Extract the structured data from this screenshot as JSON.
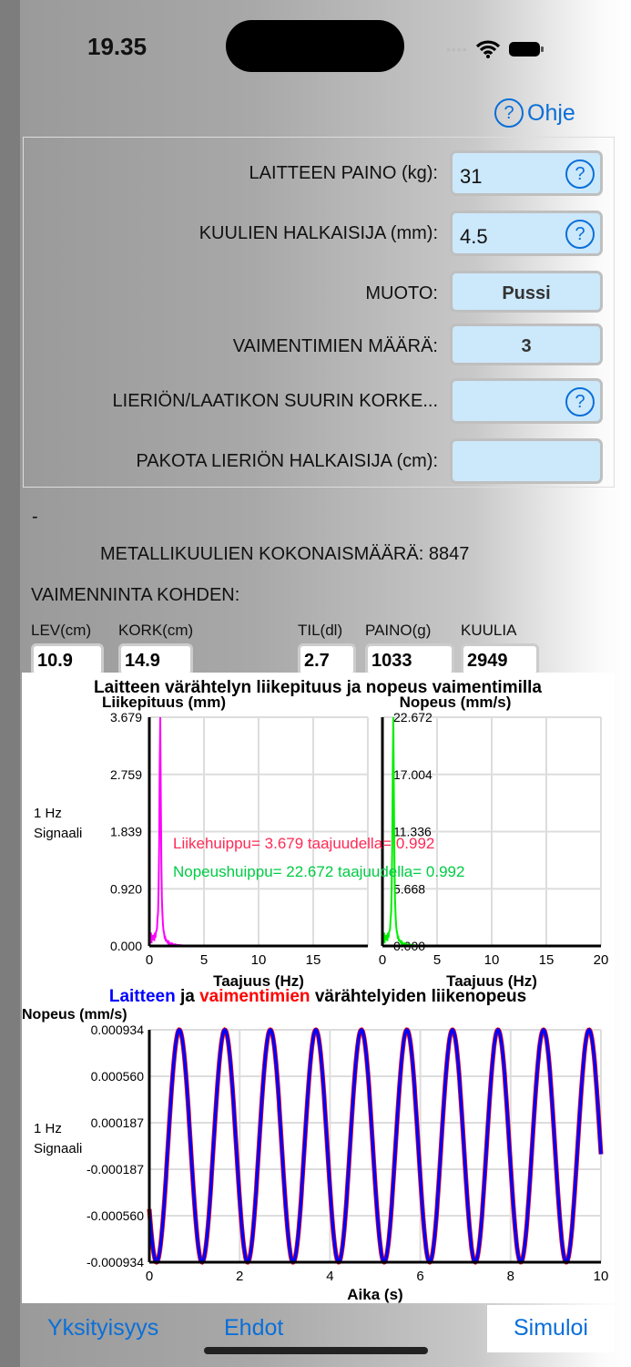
{
  "status": {
    "time": "19.35"
  },
  "help": {
    "label": "Ohje"
  },
  "form": {
    "rows": [
      {
        "label": "LAITTEEN PAINO (kg):",
        "value": "31",
        "help": true
      },
      {
        "label": "KUULIEN HALKAISIJA (mm):",
        "value": "4.5",
        "help": true
      },
      {
        "label": "MUOTO:",
        "value": "Pussi",
        "help": false
      },
      {
        "label": "VAIMENTIMIEN MÄÄRÄ:",
        "value": "3",
        "help": false
      },
      {
        "label": "LIERIÖN/LAATIKON SUURIN KORKE...",
        "value": "",
        "help": true
      },
      {
        "label": "PAKOTA LIERIÖN HALKAISIJA (cm):",
        "value": "",
        "help": false
      }
    ]
  },
  "dash": "-",
  "total": "METALLIKUULIEN KOKONAISMÄÄRÄ: 8847",
  "per_damper": {
    "title": "VAIMENNINTA KOHDEN:",
    "fields": [
      {
        "label": "LEV(cm)",
        "value": "10.9"
      },
      {
        "label": "KORK(cm)",
        "value": "14.9"
      },
      {
        "label": "TIL(dl)",
        "value": "2.7"
      },
      {
        "label": "PAINO(g)",
        "value": "1033"
      },
      {
        "label": "KUULIA",
        "value": "2949"
      }
    ]
  },
  "chart_data": [
    {
      "type": "line",
      "title": "Laitteen värähtelyn liikepituus ja nopeus vaimentimilla",
      "ylabel": "Liikepituus (mm)",
      "xlabel": "Taajuus (Hz)",
      "side_label": [
        "1 Hz",
        "Signaali"
      ],
      "xlim": [
        0,
        20
      ],
      "ylim": [
        0,
        3.679
      ],
      "xticks": [
        "0",
        "5",
        "10",
        "15"
      ],
      "yticks": [
        "0.000",
        "0.920",
        "1.839",
        "2.759",
        "3.679"
      ],
      "color": "#ff00ff",
      "peak": {
        "x": 0.992,
        "y": 3.679
      },
      "annotation": "Liikehuippu= 3.679 taajuudella= 0.992",
      "annotation_color": "#ff2a55",
      "grid": true
    },
    {
      "type": "line",
      "ylabel": "Nopeus (mm/s)",
      "xlabel": "Taajuus (Hz)",
      "xlim": [
        0,
        20
      ],
      "ylim": [
        0,
        22.672
      ],
      "xticks": [
        "0",
        "5",
        "10",
        "15",
        "20"
      ],
      "yticks": [
        "0.000",
        "5.668",
        "11.336",
        "17.004",
        "22.672"
      ],
      "color": "#00ee00",
      "peak": {
        "x": 0.992,
        "y": 22.672
      },
      "annotation": "Nopeushuippu= 22.672 taajuudella= 0.992",
      "annotation_color": "#00cc44",
      "grid": true
    },
    {
      "type": "line",
      "title_parts": [
        {
          "text": "Laitteen",
          "color": "#0000ff"
        },
        {
          "text": " ja ",
          "color": "#000000"
        },
        {
          "text": "vaimentimien",
          "color": "#ff0000"
        },
        {
          "text": " värähtelyiden liikenopeus",
          "color": "#000000"
        }
      ],
      "ylabel": "Nopeus (mm/s)",
      "xlabel": "Aika (s)",
      "side_label": [
        "1 Hz",
        "Signaali"
      ],
      "xlim": [
        0,
        10
      ],
      "ylim": [
        -0.000934,
        0.000934
      ],
      "xticks": [
        "0",
        "2",
        "4",
        "6",
        "8",
        "10"
      ],
      "yticks": [
        "-0.000934",
        "-0.000560",
        "-0.000187",
        "0.000187",
        "0.000560",
        "0.000934"
      ],
      "series": [
        {
          "color": "#0000ff",
          "amplitude": 0.000934,
          "frequency": 0.992
        },
        {
          "color": "#ff0000",
          "amplitude": 0.000934,
          "frequency": 0.992
        }
      ],
      "grid": true
    }
  ],
  "tabs": {
    "privacy": "Yksityisyys",
    "terms": "Ehdot",
    "simulate": "Simuloi"
  }
}
